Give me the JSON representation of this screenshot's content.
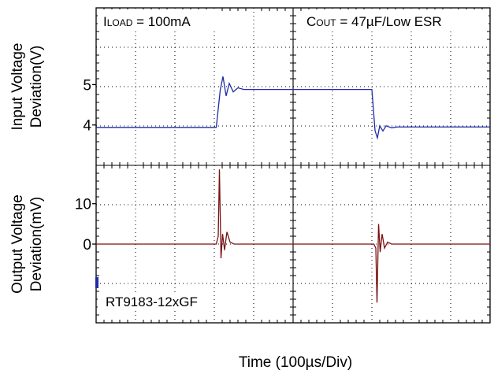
{
  "chart_data": [
    {
      "type": "line",
      "panel": "upper",
      "ylabel_line1": "Input Voltage",
      "ylabel_line2": "Deviation(V)",
      "yticks": [
        5,
        4
      ],
      "ylim": [
        3.0,
        6.9
      ],
      "xlim": [
        0,
        10
      ],
      "grid": true,
      "annotation_left": {
        "prefix": "I",
        "sub": "LOAD",
        "rest": " = 100mA"
      },
      "annotation_right": {
        "prefix": "C",
        "sub": "OUT",
        "rest": " = 47µF/Low ESR"
      },
      "series": [
        {
          "color": "#1f2aa8",
          "x": [
            0,
            3.05,
            3.15,
            3.22,
            3.3,
            3.38,
            3.48,
            3.6,
            3.75,
            7.0,
            7.08,
            7.14,
            7.2,
            7.28,
            7.36,
            7.5,
            7.65,
            10
          ],
          "y": [
            3.94,
            3.94,
            4.86,
            5.2,
            4.72,
            5.03,
            4.82,
            4.92,
            4.88,
            4.88,
            3.86,
            3.68,
            3.98,
            3.85,
            3.98,
            3.93,
            3.95,
            3.95
          ]
        }
      ]
    },
    {
      "type": "line",
      "panel": "lower",
      "ylabel_line1": "Output Voltage",
      "ylabel_line2": "Deviation(mV)",
      "yticks": [
        10,
        0
      ],
      "ylim": [
        -19.5,
        19.5
      ],
      "xlim": [
        0,
        10
      ],
      "grid": true,
      "annotation": "RT9183-12xGF",
      "series": [
        {
          "color": "#7a1010",
          "x": [
            0,
            3.05,
            3.1,
            3.13,
            3.17,
            3.21,
            3.26,
            3.32,
            3.4,
            3.5,
            3.65,
            7.05,
            7.1,
            7.13,
            7.17,
            7.21,
            7.26,
            7.32,
            7.4,
            7.5,
            7.65,
            10
          ],
          "y": [
            0,
            0,
            2.0,
            18.5,
            -3.5,
            2.5,
            -1.5,
            3.0,
            0.5,
            0.0,
            0,
            0,
            -1.0,
            -14.5,
            5.0,
            -2.0,
            2.5,
            -1.0,
            0.5,
            0,
            0,
            0
          ]
        }
      ]
    }
  ],
  "xlabel": "Time  (100µs/Div)"
}
